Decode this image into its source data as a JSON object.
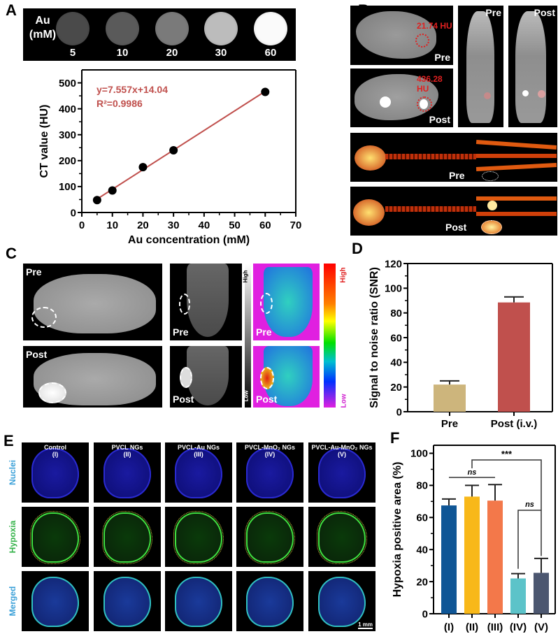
{
  "panel_labels": [
    "A",
    "B",
    "C",
    "D",
    "E",
    "F"
  ],
  "panel_a": {
    "phantom_title": [
      "Au",
      "(mM)"
    ],
    "concentrations": [
      "5",
      "10",
      "20",
      "30",
      "60"
    ],
    "phantom_colors": [
      "#4a4a4a",
      "#5a5a5a",
      "#7a7a7a",
      "#bcbcbc",
      "#fafafa"
    ]
  },
  "panel_b": {
    "hu_pre": "21.74 HU",
    "hu_post": "436.28 HU",
    "pre": "Pre",
    "post": "Post"
  },
  "panel_c": {
    "pre": "Pre",
    "post": "Post",
    "high": "High",
    "low": "Low"
  },
  "panel_e": {
    "columns": [
      {
        "name": "Control",
        "roman": "(I)"
      },
      {
        "name": "PVCL NGs",
        "roman": "(II)"
      },
      {
        "name": "PVCL-Au NGs",
        "roman": "(III)"
      },
      {
        "name": "PVCL-MnO₂ NGs",
        "roman": "(IV)"
      },
      {
        "name": "PVCL-Au-MnO₂ NGs",
        "roman": "(V)"
      }
    ],
    "rows": [
      "Nuclei",
      "Hypoxia",
      "Merged"
    ],
    "row_colors": [
      "#3aa0d8",
      "#35b34a",
      "#3aa0d8"
    ],
    "scale_bar": "1 mm"
  },
  "chart_data": [
    {
      "type": "scatter",
      "xlabel": "Au concentration (mM)",
      "ylabel": "CT value (HU)",
      "x": [
        5,
        10,
        20,
        30,
        60
      ],
      "y": [
        48,
        85,
        175,
        240,
        465
      ],
      "xlim": [
        0,
        70
      ],
      "ylim": [
        0,
        550
      ],
      "xticks": [
        0,
        10,
        20,
        30,
        40,
        50,
        60,
        70
      ],
      "yticks": [
        0,
        100,
        200,
        300,
        400,
        500
      ],
      "fit": {
        "slope": 7.557,
        "intercept": 14.04,
        "color": "#c0504d"
      },
      "annotations": [
        "y=7.557x+14.04",
        "R²=0.9986"
      ],
      "grid": false
    },
    {
      "type": "bar",
      "ylabel": "Signal to noise ratio (SNR)",
      "categories": [
        "Pre",
        "Post (i.v.)"
      ],
      "values": [
        22,
        88.5
      ],
      "errors": [
        3,
        4.5
      ],
      "colors": [
        "#cdb57c",
        "#c0504d"
      ],
      "ylim": [
        0,
        120
      ],
      "yticks": [
        0,
        20,
        40,
        60,
        80,
        100,
        120
      ],
      "grid": false
    },
    {
      "type": "bar",
      "ylabel": "Hypoxia positive area (%)",
      "categories": [
        "(I)",
        "(II)",
        "(III)",
        "(IV)",
        "(V)"
      ],
      "values": [
        67.5,
        73,
        70.5,
        22,
        25.5
      ],
      "errors": [
        4,
        7,
        10,
        3,
        9
      ],
      "colors": [
        "#0f5696",
        "#f8b819",
        "#f3784a",
        "#5cc3c9",
        "#4c5770"
      ],
      "ylim": [
        0,
        105
      ],
      "yticks": [
        0,
        20,
        40,
        60,
        80,
        100
      ],
      "significance": [
        {
          "from": "(II)",
          "to": "(V)",
          "label": "***"
        },
        {
          "from": "(I)",
          "to": "(III)",
          "label": "ns"
        },
        {
          "from": "(IV)",
          "to": "(V)",
          "label": "ns"
        }
      ],
      "grid": false
    }
  ]
}
